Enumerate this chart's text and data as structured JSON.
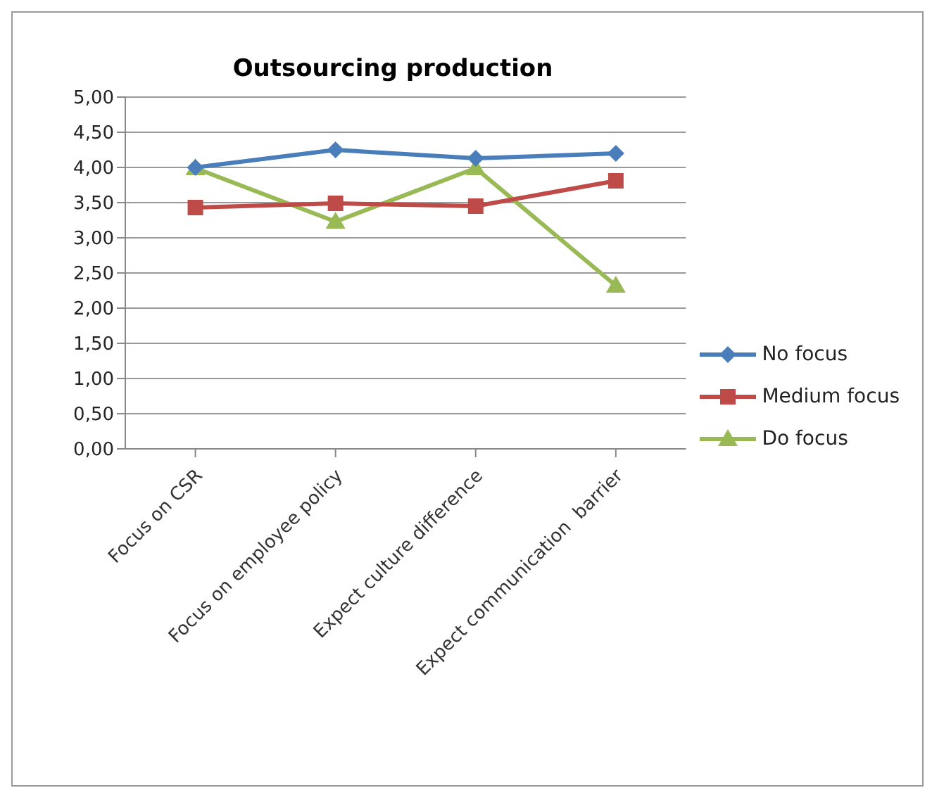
{
  "chart_data": {
    "type": "line",
    "title": "Outsourcing production",
    "categories": [
      "Focus on CSR",
      "Focus on employee policy",
      "Expect culture difference",
      "Expect communication  barrier"
    ],
    "series": [
      {
        "name": "No focus",
        "color": "#4a7ebb",
        "values": [
          4.0,
          4.25,
          4.13,
          4.2
        ],
        "marker": "diamond"
      },
      {
        "name": "Medium focus",
        "color": "#be4b48",
        "values": [
          3.43,
          3.49,
          3.45,
          3.81
        ],
        "marker": "square"
      },
      {
        "name": "Do focus",
        "color": "#98b954",
        "values": [
          3.99,
          3.23,
          3.99,
          2.32
        ],
        "marker": "triangle"
      }
    ],
    "ylim": [
      0,
      5
    ],
    "yticks": [
      {
        "value": 0,
        "label": "0,00"
      },
      {
        "value": 0.5,
        "label": "0,50"
      },
      {
        "value": 1,
        "label": "1,00"
      },
      {
        "value": 1.5,
        "label": "1,50"
      },
      {
        "value": 2,
        "label": "2,00"
      },
      {
        "value": 2.5,
        "label": "2,50"
      },
      {
        "value": 3,
        "label": "3,00"
      },
      {
        "value": 3.5,
        "label": "3,50"
      },
      {
        "value": 4,
        "label": "4,00"
      },
      {
        "value": 4.5,
        "label": "4,50"
      },
      {
        "value": 5,
        "label": "5,00"
      }
    ],
    "grid": "y",
    "legend": "right",
    "line_style": "solid"
  }
}
